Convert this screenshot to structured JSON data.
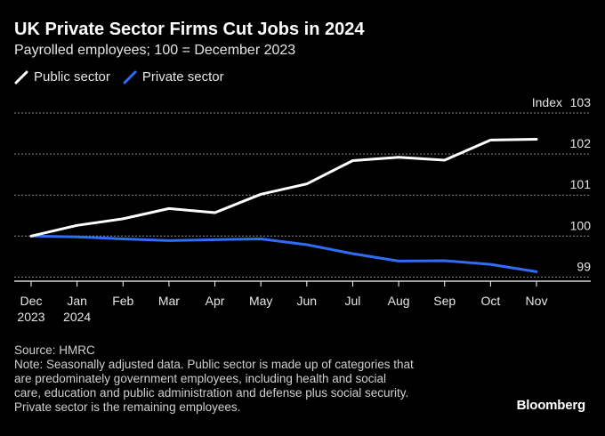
{
  "header": {
    "title": "UK Private Sector Firms Cut Jobs in 2024",
    "subtitle": "Payrolled employees; 100 = December 2023"
  },
  "colors": {
    "background": "#000000",
    "public_sector": "#ffffff",
    "private_sector": "#2f6df6",
    "grid": "#8a8a8a",
    "axis": "#ffffff"
  },
  "chart_data": {
    "type": "line",
    "x": [
      "Dec\n2023",
      "Jan\n2024",
      "Feb",
      "Mar",
      "Apr",
      "May",
      "Jun",
      "Jul",
      "Aug",
      "Sep",
      "Oct",
      "Nov"
    ],
    "series": [
      {
        "name": "Public sector",
        "color": "#ffffff",
        "values": [
          100.0,
          100.26,
          100.42,
          100.67,
          100.57,
          101.02,
          101.27,
          101.84,
          101.92,
          101.85,
          102.34,
          102.36
        ]
      },
      {
        "name": "Private sector",
        "color": "#2f6df6",
        "values": [
          100.0,
          99.98,
          99.93,
          99.89,
          99.91,
          99.93,
          99.79,
          99.57,
          99.39,
          99.4,
          99.31,
          99.13
        ]
      }
    ],
    "y_unit_label": "Index",
    "y_ticks": [
      99,
      100,
      101,
      102,
      103
    ],
    "ylim": [
      98.9,
      103.0
    ],
    "grid": true,
    "legend_position": "top-left"
  },
  "footer": {
    "source": "Source: HMRC",
    "note_lines": [
      "Note: Seasonally adjusted data. Public sector is made up of categories that",
      "are predominately government employees, including health and social",
      "care, education and public administration and defense plus social security.",
      "Private sector is the remaining employees."
    ],
    "brand": "Bloomberg"
  }
}
